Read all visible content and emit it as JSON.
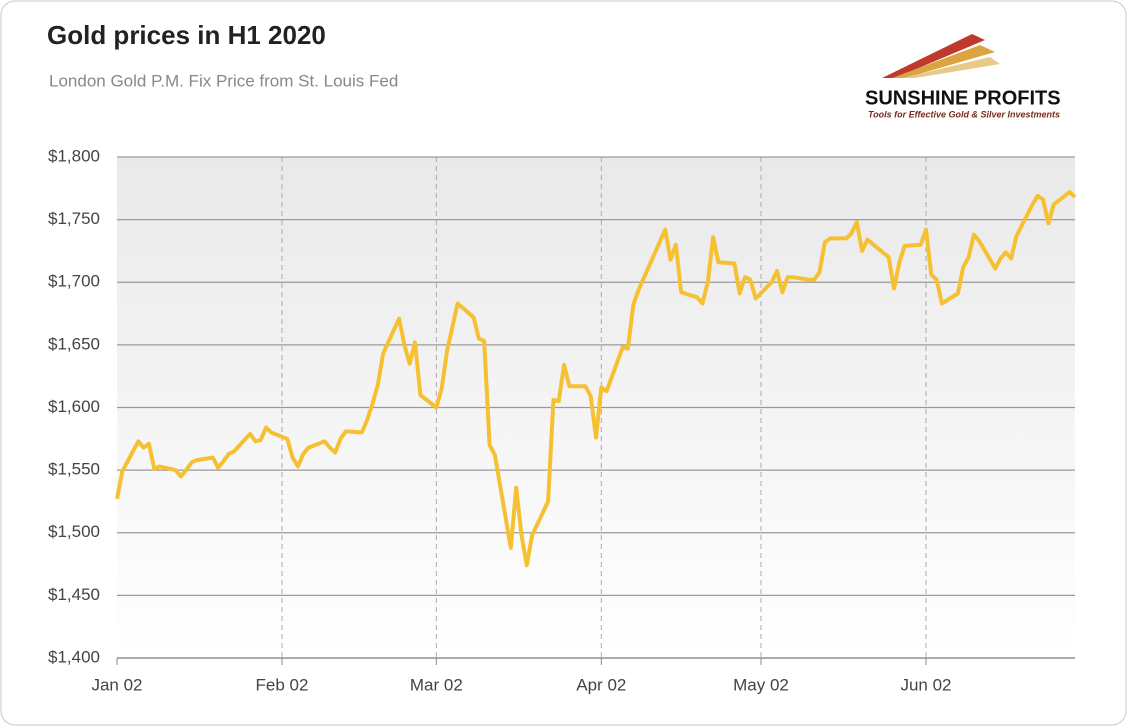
{
  "chart_data": {
    "type": "line",
    "title": "Gold prices in H1 2020",
    "subtitle": "London Gold P.M. Fix Price from St. Louis Fed",
    "logo": {
      "name": "SUNSHINE PROFITS",
      "tagline": "Tools for Effective Gold & Silver Investments"
    },
    "x": [
      "01-02",
      "01-03",
      "01-06",
      "01-07",
      "01-08",
      "01-09",
      "01-10",
      "01-13",
      "01-14",
      "01-15",
      "01-16",
      "01-17",
      "01-20",
      "01-21",
      "01-22",
      "01-23",
      "01-24",
      "01-27",
      "01-28",
      "01-29",
      "01-30",
      "01-31",
      "02-03",
      "02-04",
      "02-05",
      "02-06",
      "02-07",
      "02-10",
      "02-11",
      "02-12",
      "02-13",
      "02-14",
      "02-17",
      "02-18",
      "02-19",
      "02-20",
      "02-21",
      "02-24",
      "02-25",
      "02-26",
      "02-27",
      "02-28",
      "03-02",
      "03-03",
      "03-04",
      "03-05",
      "03-06",
      "03-09",
      "03-10",
      "03-11",
      "03-12",
      "03-13",
      "03-16",
      "03-17",
      "03-18",
      "03-19",
      "03-20",
      "03-23",
      "03-24",
      "03-25",
      "03-26",
      "03-27",
      "03-30",
      "03-31",
      "04-01",
      "04-02",
      "04-03",
      "04-06",
      "04-07",
      "04-08",
      "04-09",
      "04-14",
      "04-15",
      "04-16",
      "04-17",
      "04-20",
      "04-21",
      "04-22",
      "04-23",
      "04-24",
      "04-27",
      "04-28",
      "04-29",
      "04-30",
      "05-01",
      "05-04",
      "05-05",
      "05-06",
      "05-07",
      "05-08",
      "05-11",
      "05-12",
      "05-13",
      "05-14",
      "05-15",
      "05-18",
      "05-19",
      "05-20",
      "05-21",
      "05-22",
      "05-26",
      "05-27",
      "05-28",
      "05-29",
      "06-01",
      "06-02",
      "06-03",
      "06-04",
      "06-05",
      "06-08",
      "06-09",
      "06-10",
      "06-11",
      "06-12",
      "06-15",
      "06-16",
      "06-17",
      "06-18",
      "06-19",
      "06-22",
      "06-23",
      "06-24",
      "06-25",
      "06-26",
      "06-29",
      "06-30"
    ],
    "series": [
      {
        "name": "Gold price",
        "color": "#f5c132",
        "values": [
          1527,
          1549,
          1573,
          1568,
          1571,
          1551,
          1553,
          1550,
          1545,
          1550,
          1556,
          1558,
          1560,
          1552,
          1557,
          1563,
          1565,
          1579,
          1573,
          1574,
          1584,
          1580,
          1575,
          1560,
          1553,
          1563,
          1568,
          1573,
          1568,
          1564,
          1575,
          1581,
          1580,
          1590,
          1603,
          1618,
          1643,
          1671,
          1650,
          1635,
          1652,
          1610,
          1600,
          1615,
          1645,
          1664,
          1683,
          1672,
          1655,
          1653,
          1570,
          1562,
          1488,
          1536,
          1498,
          1474,
          1498,
          1525,
          1606,
          1605,
          1634,
          1617,
          1617,
          1609,
          1576,
          1616,
          1613,
          1648,
          1647,
          1682,
          1694,
          1742,
          1718,
          1730,
          1692,
          1688,
          1683,
          1700,
          1736,
          1716,
          1715,
          1691,
          1704,
          1702,
          1687,
          1700,
          1709,
          1692,
          1704,
          1704,
          1702,
          1702,
          1708,
          1732,
          1735,
          1735,
          1739,
          1748,
          1725,
          1734,
          1720,
          1695,
          1716,
          1729,
          1730,
          1742,
          1706,
          1702,
          1683,
          1691,
          1712,
          1720,
          1738,
          1733,
          1711,
          1719,
          1724,
          1719,
          1737,
          1762,
          1769,
          1766,
          1747,
          1762,
          1772,
          1768
        ]
      }
    ],
    "xlim": [
      "01-02",
      "06-30"
    ],
    "xticks": [
      {
        "value": "01-02",
        "label": "Jan 02"
      },
      {
        "value": "02-02",
        "label": "Feb 02"
      },
      {
        "value": "03-02",
        "label": "Mar 02"
      },
      {
        "value": "04-02",
        "label": "Apr 02"
      },
      {
        "value": "05-02",
        "label": "May 02"
      },
      {
        "value": "06-02",
        "label": "Jun 02"
      }
    ],
    "ylim": [
      1400,
      1800
    ],
    "yticks": [
      {
        "value": 1400,
        "label": "$1,400"
      },
      {
        "value": 1450,
        "label": "$1,450"
      },
      {
        "value": 1500,
        "label": "$1,500"
      },
      {
        "value": 1550,
        "label": "$1,550"
      },
      {
        "value": 1600,
        "label": "$1,600"
      },
      {
        "value": 1650,
        "label": "$1,650"
      },
      {
        "value": 1700,
        "label": "$1,700"
      },
      {
        "value": 1750,
        "label": "$1,750"
      },
      {
        "value": 1800,
        "label": "$1,800"
      }
    ],
    "grid": true
  }
}
